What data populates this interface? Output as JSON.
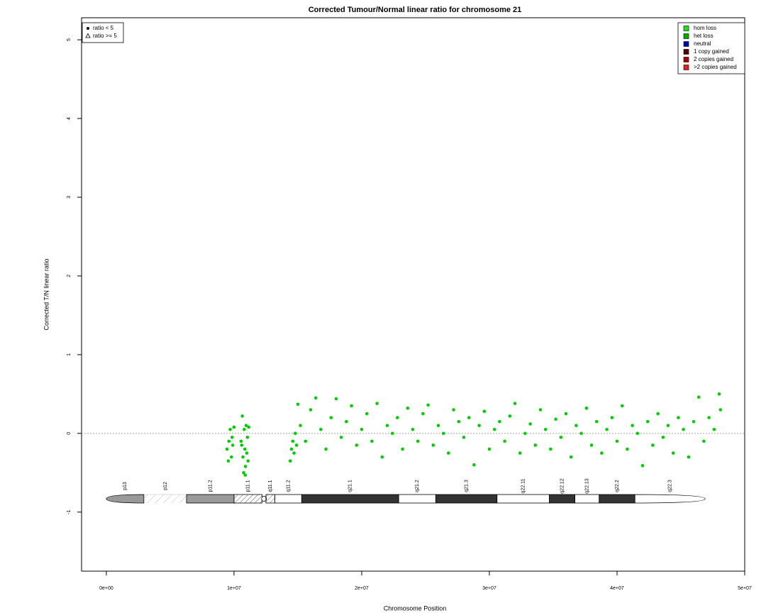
{
  "chart_data": {
    "type": "scatter",
    "title": "Corrected Tumour/Normal linear ratio for chromosome  21",
    "x_label": "Chromosome Position",
    "y_label": "Corrected T/N linear ratio",
    "xlim": [
      -1940000,
      50000000
    ],
    "ylim": [
      -1.75,
      5.28
    ],
    "xticks": [
      {
        "value": 0,
        "label": "0e+00"
      },
      {
        "value": 10000000,
        "label": "1e+07"
      },
      {
        "value": 20000000,
        "label": "2e+07"
      },
      {
        "value": 30000000,
        "label": "3e+07"
      },
      {
        "value": 40000000,
        "label": "4e+07"
      },
      {
        "value": 50000000,
        "label": "5e+07"
      }
    ],
    "yticks": [
      -1,
      0,
      1,
      2,
      3,
      4,
      5
    ],
    "hline": 0,
    "series": [
      {
        "name": "het loss",
        "color": "#00cc00",
        "x": [
          9450000,
          9600000,
          9700000,
          9800000,
          9900000,
          10000000,
          9550000,
          9850000,
          10550000,
          10650000,
          10700000,
          10750000,
          10800000,
          10850000,
          10900000,
          10950000,
          11000000,
          11050000,
          11100000,
          11150000,
          10600000,
          10880000,
          14400000,
          14500000,
          14600000,
          14700000,
          14800000,
          14900000,
          15000000,
          15200000,
          15600000,
          16000000,
          16400000,
          16800000,
          17200000,
          17600000,
          18000000,
          18400000,
          18800000,
          19200000,
          19600000,
          20000000,
          20400000,
          20800000,
          21200000,
          21600000,
          22000000,
          22400000,
          22800000,
          23200000,
          23600000,
          24000000,
          24400000,
          24800000,
          25200000,
          25600000,
          26000000,
          26400000,
          26800000,
          27200000,
          27600000,
          28000000,
          28400000,
          28800000,
          29200000,
          29600000,
          30000000,
          30400000,
          30800000,
          31200000,
          31600000,
          32000000,
          32400000,
          32800000,
          33200000,
          33600000,
          34000000,
          34400000,
          34800000,
          35200000,
          35600000,
          36000000,
          36400000,
          36800000,
          37200000,
          37600000,
          38000000,
          38400000,
          38800000,
          39200000,
          39600000,
          40000000,
          40400000,
          40800000,
          41200000,
          41600000,
          42000000,
          42400000,
          42800000,
          43200000,
          43600000,
          44000000,
          44400000,
          44800000,
          45200000,
          45600000,
          46000000,
          46400000,
          46800000,
          47200000,
          47600000,
          48000000,
          48100000
        ],
        "values": [
          -0.2,
          -0.1,
          0.05,
          -0.3,
          -0.15,
          0.08,
          -0.35,
          -0.05,
          -0.1,
          0.22,
          -0.3,
          -0.5,
          0.05,
          -0.2,
          -0.42,
          0.1,
          -0.25,
          -0.05,
          -0.35,
          0.08,
          -0.15,
          -0.53,
          -0.35,
          -0.2,
          -0.1,
          -0.25,
          0.0,
          -0.15,
          0.37,
          0.1,
          -0.1,
          0.3,
          0.45,
          0.05,
          -0.2,
          0.2,
          0.44,
          -0.05,
          0.15,
          0.35,
          -0.15,
          0.05,
          0.25,
          -0.1,
          0.38,
          -0.3,
          0.1,
          0.0,
          0.2,
          -0.2,
          0.32,
          0.05,
          -0.1,
          0.25,
          0.36,
          -0.15,
          0.1,
          0.0,
          -0.25,
          0.3,
          0.15,
          -0.05,
          0.2,
          -0.4,
          0.1,
          0.28,
          -0.2,
          0.05,
          0.15,
          -0.1,
          0.22,
          0.38,
          -0.25,
          0.0,
          0.12,
          -0.15,
          0.3,
          0.05,
          -0.2,
          0.18,
          -0.05,
          0.25,
          -0.3,
          0.1,
          0.0,
          0.32,
          -0.15,
          0.15,
          -0.25,
          0.05,
          0.2,
          -0.1,
          0.35,
          -0.2,
          0.1,
          0.0,
          -0.41,
          0.15,
          -0.15,
          0.25,
          -0.05,
          0.1,
          -0.25,
          0.2,
          0.05,
          -0.3,
          0.15,
          0.46,
          -0.1,
          0.2,
          0.05,
          0.5,
          0.3
        ]
      }
    ],
    "shape_legend": [
      "ratio < 5",
      "ratio >= 5"
    ],
    "color_legend": [
      {
        "name": "hom loss",
        "color": "#22dd22"
      },
      {
        "name": "het loss",
        "color": "#00aa00"
      },
      {
        "name": "neutral",
        "color": "#0000aa"
      },
      {
        "name": "1 copy gained",
        "color": "#550000"
      },
      {
        "name": "2 copies gained",
        "color": "#aa0000"
      },
      {
        "name": ">2 copies gained",
        "color": "#dd2222"
      }
    ],
    "ideogram": [
      {
        "name": "p13",
        "start": 0,
        "end": 2940000,
        "stain": "gvar"
      },
      {
        "name": "p12",
        "start": 2940000,
        "end": 6280000,
        "stain": "stalk"
      },
      {
        "name": "p11.2",
        "start": 6280000,
        "end": 10000000,
        "stain": "gvar"
      },
      {
        "name": "p11.1",
        "start": 10000000,
        "end": 12200000,
        "stain": "acen"
      },
      {
        "name": "q11.1",
        "start": 12500000,
        "end": 13200000,
        "stain": "acen"
      },
      {
        "name": "q11.2",
        "start": 13200000,
        "end": 15300000,
        "stain": "gneg"
      },
      {
        "name": "q21.1",
        "start": 15300000,
        "end": 22900000,
        "stain": "gpos"
      },
      {
        "name": "q21.2",
        "start": 22900000,
        "end": 25800000,
        "stain": "gneg"
      },
      {
        "name": "q21.3",
        "start": 25800000,
        "end": 30600000,
        "stain": "gpos"
      },
      {
        "name": "q22.11",
        "start": 30600000,
        "end": 34700000,
        "stain": "gneg"
      },
      {
        "name": "q22.12",
        "start": 34700000,
        "end": 36700000,
        "stain": "gpos"
      },
      {
        "name": "q22.13",
        "start": 36700000,
        "end": 38600000,
        "stain": "gneg"
      },
      {
        "name": "q22.2",
        "start": 38600000,
        "end": 41400000,
        "stain": "gpos"
      },
      {
        "name": "q22.3",
        "start": 41400000,
        "end": 46900000,
        "stain": "gneg"
      }
    ]
  }
}
